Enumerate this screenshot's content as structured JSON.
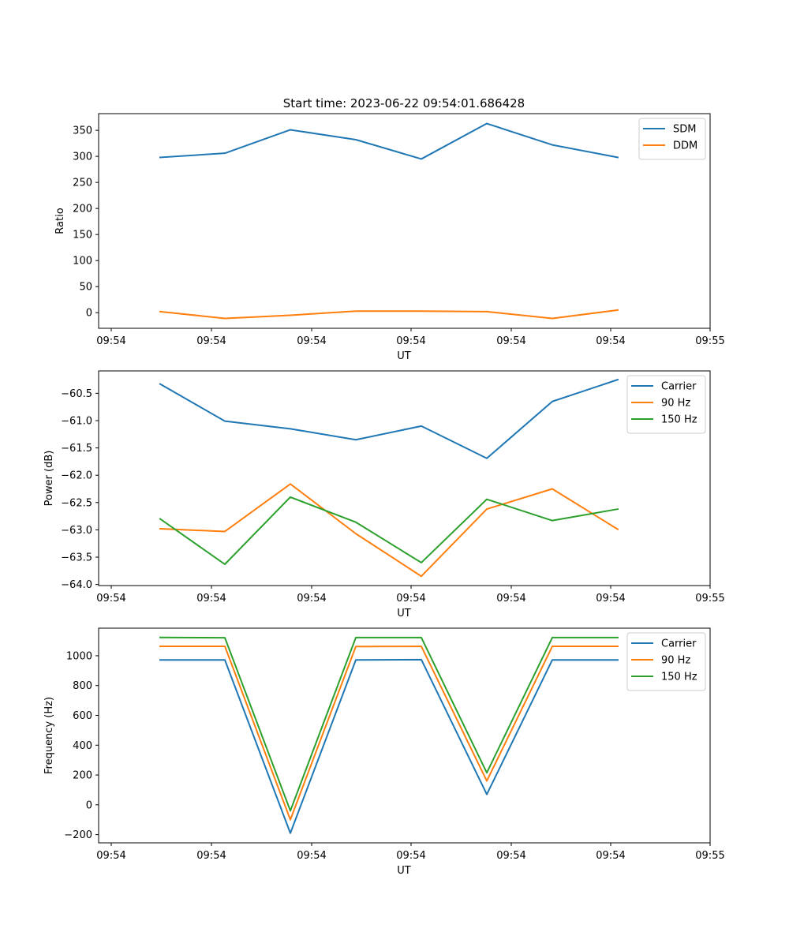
{
  "figure": {
    "title": "Start time: 2023-06-22 09:54:01.686428"
  },
  "chart_data": [
    {
      "type": "line",
      "title": "Start time: 2023-06-22 09:54:01.686428",
      "xlabel": "UT",
      "ylabel": "Ratio",
      "x_tick_labels": [
        "09:54",
        "09:54",
        "09:54",
        "09:54",
        "09:54",
        "09:54",
        "09:54",
        "09:55"
      ],
      "y_ticks": [
        0,
        50,
        100,
        150,
        200,
        250,
        300,
        350
      ],
      "ylim": [
        -30,
        382
      ],
      "grid": false,
      "legend_position": "upper-right",
      "series": [
        {
          "name": "SDM",
          "color": "#1f77b4",
          "values": [
            298,
            306,
            351,
            332,
            295,
            363,
            322,
            298
          ]
        },
        {
          "name": "DDM",
          "color": "#ff7f0e",
          "values": [
            2,
            -11,
            -5,
            3,
            3,
            2,
            -11,
            5
          ]
        }
      ]
    },
    {
      "type": "line",
      "title": "",
      "xlabel": "UT",
      "ylabel": "Power (dB)",
      "x_tick_labels": [
        "09:54",
        "09:54",
        "09:54",
        "09:54",
        "09:54",
        "09:54",
        "09:54",
        "09:55"
      ],
      "y_ticks": [
        -64.0,
        -63.5,
        -63.0,
        -62.5,
        -62.0,
        -61.5,
        -61.0,
        -60.5
      ],
      "ylim": [
        -64.02,
        -60.09
      ],
      "grid": false,
      "legend_position": "upper-right",
      "series": [
        {
          "name": "Carrier",
          "color": "#1f77b4",
          "values": [
            -60.33,
            -61.01,
            -61.15,
            -61.35,
            -61.1,
            -61.69,
            -60.65,
            -60.25
          ]
        },
        {
          "name": "90 Hz",
          "color": "#ff7f0e",
          "values": [
            -62.98,
            -63.03,
            -62.16,
            -63.07,
            -63.85,
            -62.62,
            -62.25,
            -62.99
          ]
        },
        {
          "name": "150 Hz",
          "color": "#2ca02c",
          "values": [
            -62.8,
            -63.63,
            -62.4,
            -62.86,
            -63.6,
            -62.44,
            -62.83,
            -62.62
          ]
        }
      ]
    },
    {
      "type": "line",
      "title": "",
      "xlabel": "UT",
      "ylabel": "Frequency (Hz)",
      "x_tick_labels": [
        "09:54",
        "09:54",
        "09:54",
        "09:54",
        "09:54",
        "09:54",
        "09:54",
        "09:55"
      ],
      "y_ticks": [
        -200,
        0,
        200,
        400,
        600,
        800,
        1000
      ],
      "ylim": [
        -255,
        1185
      ],
      "grid": false,
      "legend_position": "upper-right",
      "series": [
        {
          "name": "Carrier",
          "color": "#1f77b4",
          "values": [
            972,
            972,
            -190,
            972,
            974,
            70,
            972,
            972
          ]
        },
        {
          "name": "90 Hz",
          "color": "#ff7f0e",
          "values": [
            1063,
            1063,
            -100,
            1062,
            1063,
            160,
            1063,
            1063
          ]
        },
        {
          "name": "150 Hz",
          "color": "#2ca02c",
          "values": [
            1123,
            1121,
            -40,
            1122,
            1122,
            215,
            1122,
            1122
          ]
        }
      ]
    }
  ]
}
